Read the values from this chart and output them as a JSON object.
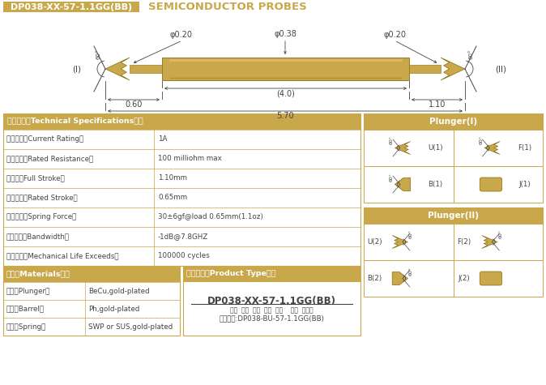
{
  "title_box_text": "DP038-XX-57-1.1GG(BB)",
  "title_right_text": "SEMICONDUCTOR PROBES",
  "background_color": "#FFFFFF",
  "gold": "#C8A84B",
  "gold_dark": "#8B6914",
  "gold_light": "#E8C870",
  "text_color": "#444444",
  "specs_title": "技术要求（Technical Specifications）：",
  "specs": [
    [
      "额定电流（Current Rating）",
      "1A"
    ],
    [
      "额定电阻（Rated Resistance）",
      "100 milliohm max"
    ],
    [
      "满行程（Full Stroke）",
      "1.10mm"
    ],
    [
      "额定行程（Rated Stroke）",
      "0.65mm"
    ],
    [
      "额定弹力（Spring Force）",
      "30±6gf@load 0.65mm(1.1oz)"
    ],
    [
      "频率带宽（Bandwidth）",
      "-1dB@7.8GHZ"
    ],
    [
      "测试寿命（Mechanical Life Exceeds）",
      "100000 cycles"
    ]
  ],
  "materials_title": "材质（Materials）：",
  "materials": [
    [
      "针头（Plunger）",
      "BeCu,gold-plated"
    ],
    [
      "针管（Barrel）",
      "Ph,gold-plated"
    ],
    [
      "弹簧（Spring）",
      "SWP or SUS,gold-plated"
    ]
  ],
  "product_title": "成品型号（Product Type）：",
  "product_main": "DP038-XX-57-1.1GG(BB)",
  "product_sub": "系列  规格  头型  总长  弹力    镀金  针头规",
  "product_order": "订购举例:DP038-BU-57-1.1GG(BB)",
  "plunger1_title": "Plunger(I)",
  "plunger2_title": "Plunger(II)",
  "plunger1_items": [
    "U(1)",
    "F(1)",
    "B(1)",
    "J(1)"
  ],
  "plunger2_items": [
    "U(2)",
    "F(2)",
    "B(2)",
    "J(2)"
  ]
}
